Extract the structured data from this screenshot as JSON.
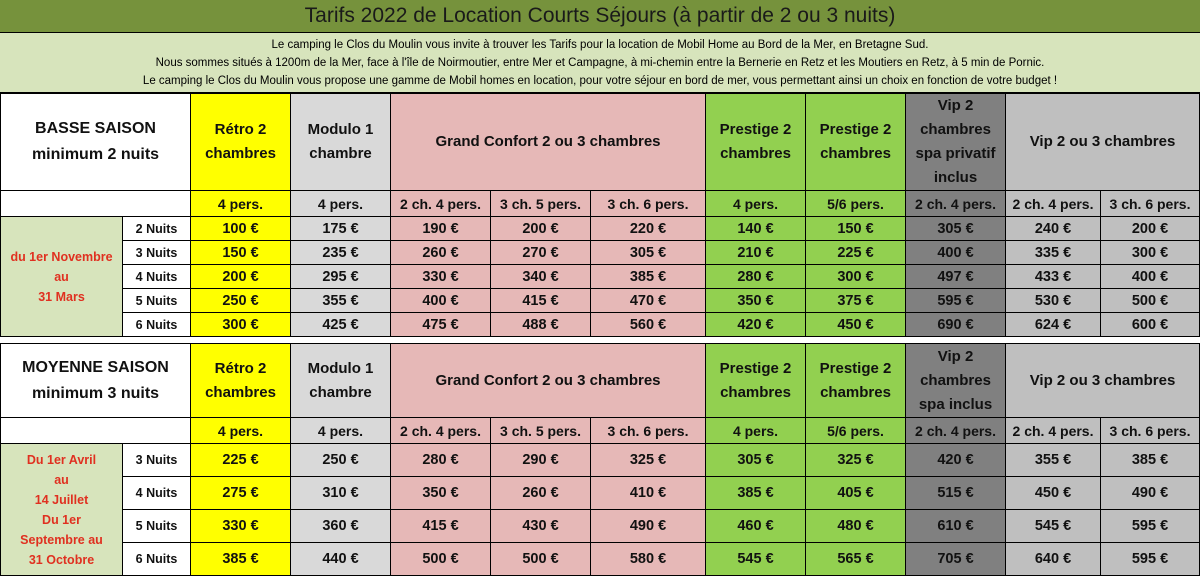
{
  "title": "Tarifs 2022 de Location Courts Séjours  (à partir de 2 ou 3 nuits)",
  "intro": [
    "Le camping le Clos du Moulin vous invite à trouver les Tarifs pour la location de Mobil Home au Bord de la Mer, en Bretagne Sud.",
    "Nous sommes situés à 1200m de la Mer, face à l'île de Noirmoutier, entre Mer et Campagne, à mi-chemin entre la Bernerie en Retz et les Moutiers en Retz, à 5 min de Pornic.",
    "Le camping le Clos du Moulin vous propose une gamme de Mobil homes en location, pour votre séjour en bord de mer, vous permettant ainsi un choix en fonction de votre budget !"
  ],
  "colors": {
    "title_bg": "#76923c",
    "intro_bg": "#d7e4bc",
    "retro": "#ffff00",
    "modulo": "#d9d9d9",
    "confort": "#e6b8b7",
    "prestige": "#92d050",
    "vip_spa": "#808080",
    "vip": "#bfbfbf",
    "dates_text": "#e03020"
  },
  "basse": {
    "season_line1": "BASSE SAISON",
    "season_line2": "minimum 2 nuits",
    "headers": [
      "Rétro 2 chambres",
      "Modulo 1 chambre",
      "Grand Confort 2 ou 3 chambres",
      "Prestige 2 chambres",
      "Prestige 2 chambres",
      "Vip 2 chambres spa privatif inclus",
      "Vip 2 ou 3 chambres"
    ],
    "sub": [
      "4 pers.",
      "4 pers.",
      "2 ch. 4 pers.",
      "3 ch. 5 pers.",
      "3 ch. 6 pers.",
      "4 pers.",
      "5/6 pers.",
      "2 ch. 4 pers.",
      "2 ch. 4 pers.",
      "3 ch. 6 pers."
    ],
    "dates": [
      "du 1er Novembre",
      "au",
      "31 Mars"
    ],
    "rows": [
      {
        "nights": "2 Nuits",
        "p": [
          "100 €",
          "175 €",
          "190 €",
          "200 €",
          "220 €",
          "140 €",
          "150 €",
          "305 €",
          "240 €",
          "200 €"
        ]
      },
      {
        "nights": "3 Nuits",
        "p": [
          "150 €",
          "235 €",
          "260 €",
          "270 €",
          "305 €",
          "210 €",
          "225 €",
          "400 €",
          "335 €",
          "300 €"
        ]
      },
      {
        "nights": "4 Nuits",
        "p": [
          "200 €",
          "295 €",
          "330 €",
          "340 €",
          "385 €",
          "280 €",
          "300 €",
          "497 €",
          "433 €",
          "400 €"
        ]
      },
      {
        "nights": "5 Nuits",
        "p": [
          "250 €",
          "355 €",
          "400 €",
          "415 €",
          "470 €",
          "350 €",
          "375 €",
          "595 €",
          "530 €",
          "500 €"
        ]
      },
      {
        "nights": "6 Nuits",
        "p": [
          "300 €",
          "425 €",
          "475 €",
          "488 €",
          "560 €",
          "420 €",
          "450 €",
          "690 €",
          "624 €",
          "600 €"
        ]
      }
    ]
  },
  "moyenne": {
    "season_line1": "MOYENNE SAISON",
    "season_line2": "minimum 3 nuits",
    "headers": [
      "Rétro 2 chambres",
      "Modulo 1 chambre",
      "Grand Confort 2 ou 3 chambres",
      "Prestige 2 chambres",
      "Prestige 2 chambres",
      "Vip 2 chambres spa inclus",
      "Vip 2 ou 3 chambres"
    ],
    "sub": [
      "4 pers.",
      "4 pers.",
      "2 ch. 4 pers.",
      "3 ch. 5 pers.",
      "3 ch. 6 pers.",
      "4 pers.",
      "5/6 pers.",
      "2 ch. 4 pers.",
      "2 ch. 4 pers.",
      "3 ch. 6 pers."
    ],
    "dates": [
      "Du 1er Avril",
      "au",
      "14 Juillet",
      "Du 1er",
      "Septembre au",
      "31 Octobre"
    ],
    "rows": [
      {
        "nights": "3 Nuits",
        "p": [
          "225 €",
          "250 €",
          "280 €",
          "290 €",
          "325 €",
          "305 €",
          "325 €",
          "420 €",
          "355 €",
          "385 €"
        ]
      },
      {
        "nights": "4 Nuits",
        "p": [
          "275 €",
          "310 €",
          "350 €",
          "260 €",
          "410 €",
          "385 €",
          "405 €",
          "515 €",
          "450 €",
          "490 €"
        ]
      },
      {
        "nights": "5 Nuits",
        "p": [
          "330 €",
          "360 €",
          "415 €",
          "430 €",
          "490 €",
          "460 €",
          "480 €",
          "610 €",
          "545 €",
          "595 €"
        ]
      },
      {
        "nights": "6 Nuits",
        "p": [
          "385 €",
          "440 €",
          "500 €",
          "500 €",
          "580 €",
          "545 €",
          "565 €",
          "705 €",
          "640 €",
          "595 €"
        ]
      }
    ]
  }
}
